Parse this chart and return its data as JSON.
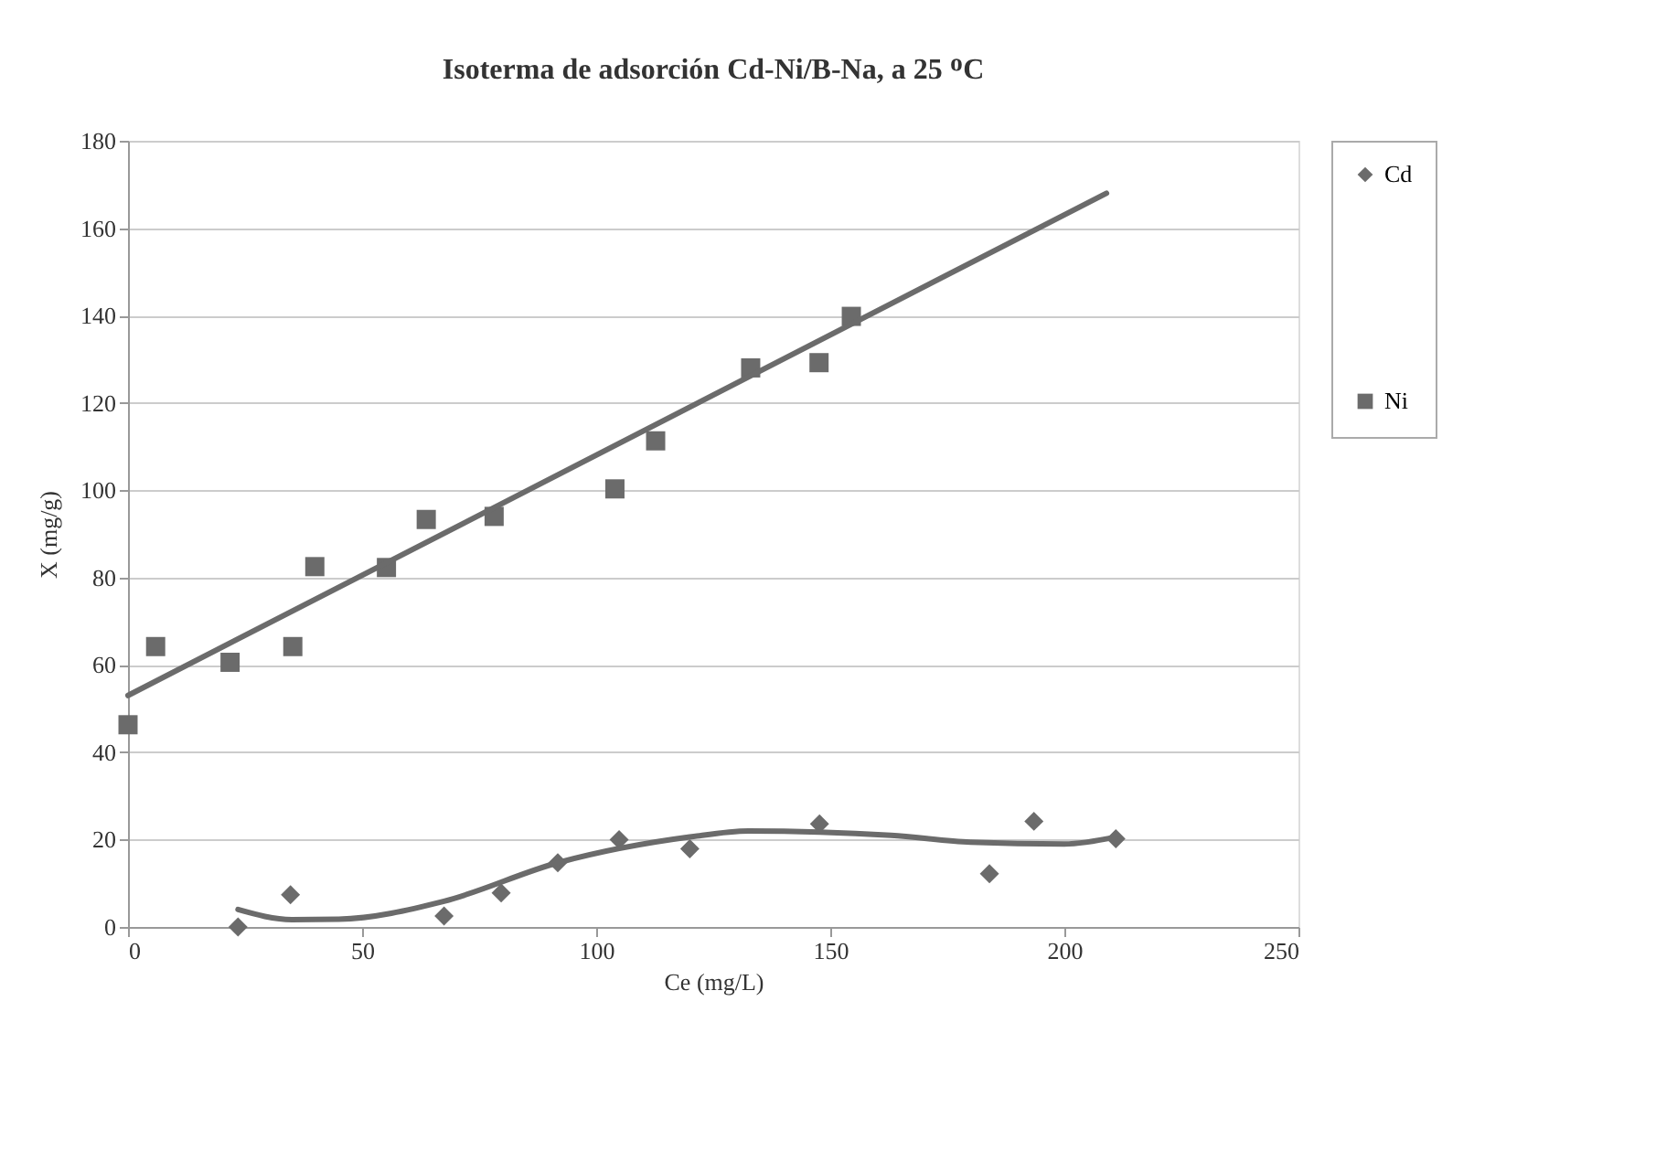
{
  "chart_data": {
    "type": "scatter",
    "title": "Isoterma de adsorción Cd-Ni/B-Na, a 25 ᴼC",
    "xlabel": "Ce (mg/L)",
    "ylabel": "X (mg/g)",
    "xlim": [
      0,
      250
    ],
    "xticks": [
      0,
      50,
      100,
      150,
      200,
      250
    ],
    "ylim": [
      0,
      180
    ],
    "yticks": [
      0,
      20,
      40,
      60,
      80,
      100,
      120,
      140,
      160,
      180
    ],
    "grid": "y",
    "legend": "right",
    "series": [
      {
        "name": "Cd",
        "marker": "diamond",
        "color": "#6b6b6b",
        "x": [
          23.5,
          34.7,
          67.5,
          79.7,
          91.8,
          104.9,
          120,
          147.7,
          184,
          193.5,
          211
        ],
        "values": [
          0,
          7.4,
          2.5,
          7.8,
          14.7,
          20,
          17.9,
          23.6,
          12.2,
          24.2,
          20.2
        ]
      },
      {
        "name": "Ni",
        "marker": "square",
        "color": "#6b6b6b",
        "x": [
          0,
          5.9,
          21.8,
          35.2,
          39.9,
          55.2,
          63.7,
          78.2,
          104,
          112.7,
          133,
          147.6,
          154.5
        ],
        "values": [
          46.3,
          64.2,
          60.6,
          64.2,
          82.5,
          82.3,
          93.3,
          94,
          100.3,
          111.3,
          128,
          129.2,
          139.8
        ]
      },
      {
        "type": "line",
        "color": "#6b6b6b",
        "x": [
          23.5,
          35,
          45,
          67.5,
          91.8,
          120,
          132.5,
          163,
          180,
          200,
          211
        ],
        "values": [
          4,
          1.7,
          1.8,
          5.9,
          14.7,
          20.6,
          22,
          21,
          19.4,
          19,
          20.6
        ]
      },
      {
        "type": "line",
        "color": "#6b6b6b",
        "x": [
          0,
          209
        ],
        "values": [
          53,
          168
        ]
      }
    ]
  }
}
